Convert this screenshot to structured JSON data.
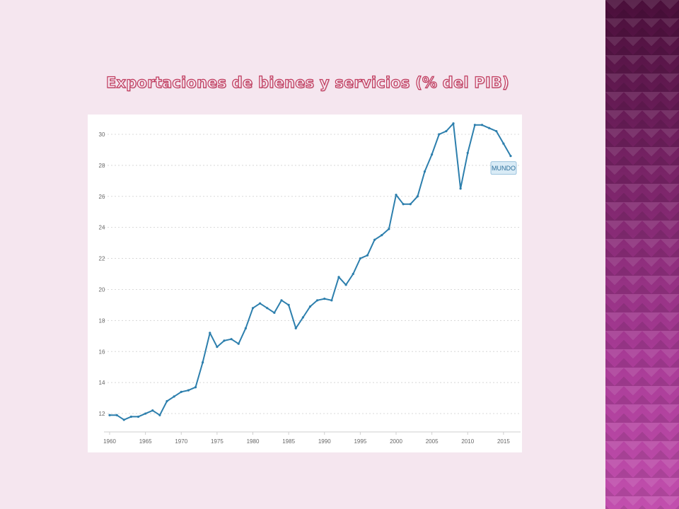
{
  "slide": {
    "title": "Exportaciones de bienes y servicios (% del PIB)"
  },
  "chart_data": {
    "type": "line",
    "title": "",
    "xlabel": "",
    "ylabel": "",
    "xlim": [
      1960,
      2016
    ],
    "ylim": [
      11,
      31
    ],
    "yticks": [
      12,
      14,
      16,
      18,
      20,
      22,
      24,
      26,
      28,
      30
    ],
    "xticks": [
      1960,
      1965,
      1970,
      1975,
      1980,
      1985,
      1990,
      1995,
      2000,
      2005,
      2010,
      2015
    ],
    "grid": "horizontal-dashed",
    "series": [
      {
        "name": "MUNDO",
        "color": "#2d7fad",
        "x": [
          1960,
          1961,
          1962,
          1963,
          1964,
          1965,
          1966,
          1967,
          1968,
          1969,
          1970,
          1971,
          1972,
          1973,
          1974,
          1975,
          1976,
          1977,
          1978,
          1979,
          1980,
          1981,
          1982,
          1983,
          1984,
          1985,
          1986,
          1987,
          1988,
          1989,
          1990,
          1991,
          1992,
          1993,
          1994,
          1995,
          1996,
          1997,
          1998,
          1999,
          2000,
          2001,
          2002,
          2003,
          2004,
          2005,
          2006,
          2007,
          2008,
          2009,
          2010,
          2011,
          2012,
          2013,
          2014,
          2015,
          2016
        ],
        "y": [
          11.9,
          11.9,
          11.6,
          11.8,
          11.8,
          12.0,
          12.2,
          11.9,
          12.8,
          13.1,
          13.4,
          13.5,
          13.7,
          15.3,
          17.2,
          16.3,
          16.7,
          16.8,
          16.5,
          17.5,
          18.8,
          19.1,
          18.8,
          18.5,
          19.3,
          19.0,
          17.5,
          18.2,
          18.9,
          19.3,
          19.4,
          19.3,
          20.8,
          20.3,
          21.0,
          22.0,
          22.2,
          23.2,
          23.5,
          23.9,
          26.1,
          25.5,
          25.5,
          26.0,
          27.6,
          28.7,
          30.0,
          30.2,
          30.7,
          26.5,
          28.8,
          30.6,
          30.6,
          30.4,
          30.2,
          29.4,
          28.6
        ]
      }
    ],
    "legend": {
      "label": "MUNDO",
      "placement": "line-end"
    }
  }
}
